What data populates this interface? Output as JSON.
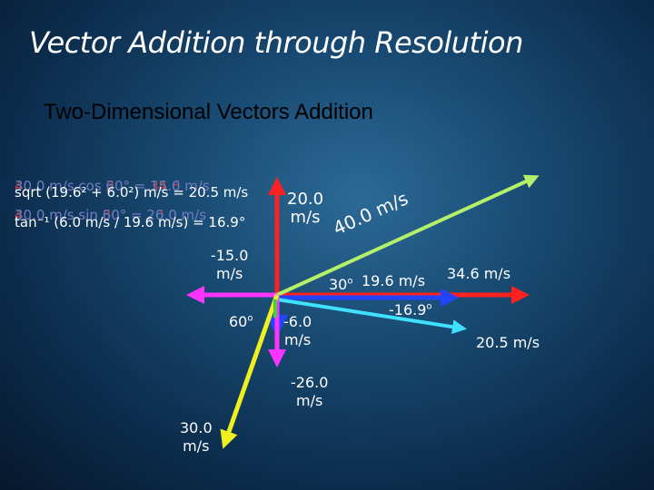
{
  "title": "Vector Addition through Resolution",
  "subtitle": "Two-Dimensional Vectors Addition",
  "colors": {
    "magenta": "#ff33ff",
    "red": "#ff2020",
    "yellow": "#f0f020",
    "light_green": "#b4f06a",
    "blue": "#2244ff",
    "cyan": "#40e0ff"
  },
  "calculations": {
    "overlap_red_1": "40.0 m/s cos 30° = 34.6 m/s",
    "overlap_blue_1": "30.0 m/s cos 60° = 15.0 m/s",
    "resultant_magnitude": "sqrt (19.6² + 6.0²) m/s = 20.5 m/s",
    "overlap_red_2": "40.0 m/s sin 30° = 20.0 m/s",
    "overlap_blue_2": "30.0 m/s sin 60° = 26.0 m/s",
    "resultant_angle": "tan⁻¹ (6.0 m/s / 19.6 m/s) = 16.9°"
  },
  "labels": {
    "y_comp_40": [
      "20.0",
      "m/s"
    ],
    "x_comp_30": [
      "-15.0",
      "m/s"
    ],
    "vector_40": "40.0 m/s",
    "angle_30": "30",
    "x_sum": "19.6 m/s",
    "x_comp_40": "34.6 m/s",
    "angle_60": "60",
    "y_sum": [
      "-6.0",
      "m/s"
    ],
    "y_comp_30": [
      "-26.0",
      "m/s"
    ],
    "vector_30": [
      "30.0",
      "m/s"
    ],
    "resultant_angle": "-16.9",
    "resultant": "20.5 m/s",
    "degree_mark": "o"
  }
}
